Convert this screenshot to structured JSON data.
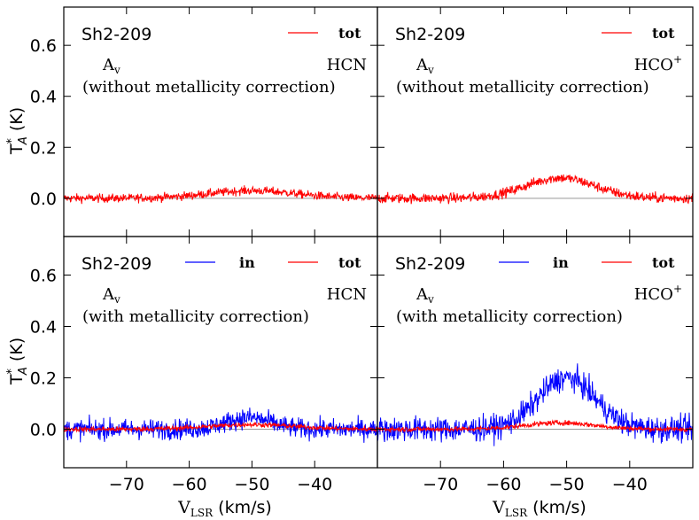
{
  "chart_data": {
    "type": "line",
    "xlabel": "V",
    "xlabel_sub": "LSR",
    "xlabel_unit": " (km/s)",
    "ylabel": "T",
    "ylabel_sup": "*",
    "ylabel_sub": "A",
    "ylabel_unit": " (K)",
    "xlim": [
      -80,
      -30
    ],
    "ylim": [
      -0.15,
      0.75
    ],
    "x_tick_values": [
      -70,
      -60,
      -50,
      -40
    ],
    "x_tick_labels": [
      "−70",
      "−60",
      "−50",
      "−40"
    ],
    "y_tick_values": [
      0.0,
      0.2,
      0.4,
      0.6
    ],
    "y_tick_labels": [
      "0.0",
      "0.2",
      "0.4",
      "0.6"
    ],
    "colors": {
      "tot": "#ff0000",
      "in": "#0000ff",
      "zero": "#999999"
    },
    "panels": [
      {
        "source": "Sh2-209",
        "av_label": "A",
        "av_sub": "v",
        "molecule": "HCN",
        "molecule_sup": "",
        "note": "(without metallicity correction)",
        "legend": [
          "tot"
        ],
        "series": [
          {
            "name": "tot",
            "noise": 0.012,
            "peak": 0.03,
            "center": -50,
            "width": 7
          }
        ]
      },
      {
        "source": "Sh2-209",
        "av_label": "A",
        "av_sub": "v",
        "molecule": "HCO",
        "molecule_sup": "+",
        "note": "(without metallicity correction)",
        "legend": [
          "tot"
        ],
        "series": [
          {
            "name": "tot",
            "noise": 0.014,
            "peak": 0.08,
            "center": -51,
            "width": 5.5
          }
        ]
      },
      {
        "source": "Sh2-209",
        "av_label": "A",
        "av_sub": "v",
        "molecule": "HCN",
        "molecule_sup": "",
        "note": "(with metallicity correction)",
        "legend": [
          "in",
          "tot"
        ],
        "series": [
          {
            "name": "in",
            "noise": 0.028,
            "peak": 0.045,
            "center": -50.5,
            "width": 3.5
          },
          {
            "name": "tot",
            "noise": 0.007,
            "peak": 0.018,
            "center": -50,
            "width": 7
          }
        ]
      },
      {
        "source": "Sh2-209",
        "av_label": "A",
        "av_sub": "v",
        "molecule": "HCO",
        "molecule_sup": "+",
        "note": "(with metallicity correction)",
        "legend": [
          "in",
          "tot"
        ],
        "series": [
          {
            "name": "in",
            "noise": 0.035,
            "peak": 0.2,
            "center": -50,
            "width": 4.5
          },
          {
            "name": "tot",
            "noise": 0.007,
            "peak": 0.025,
            "center": -51,
            "width": 5.5
          }
        ]
      }
    ]
  }
}
